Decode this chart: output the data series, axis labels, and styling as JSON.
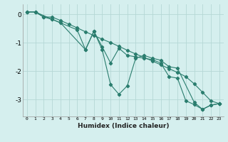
{
  "xlabel": "Humidex (Indice chaleur)",
  "ylabel": "",
  "background_color": "#d5efee",
  "line_color": "#2a7d6e",
  "marker": "D",
  "markersize": 2.2,
  "linewidth": 0.8,
  "grid_color": "#b5d8d5",
  "xlim": [
    -0.5,
    23.5
  ],
  "ylim": [
    -3.6,
    0.35
  ],
  "yticks": [
    0,
    -1,
    -2,
    -3
  ],
  "xticks": [
    0,
    1,
    2,
    3,
    4,
    5,
    6,
    7,
    8,
    9,
    10,
    11,
    12,
    13,
    14,
    15,
    16,
    17,
    18,
    19,
    20,
    21,
    22,
    23
  ],
  "series": [
    {
      "x": [
        0,
        1,
        2,
        3,
        4,
        5,
        6,
        7,
        8,
        9,
        10,
        11,
        12,
        13,
        14,
        15,
        16,
        17,
        18,
        19,
        20,
        21,
        22,
        23
      ],
      "y": [
        0.08,
        0.08,
        -0.1,
        -0.1,
        -0.22,
        -0.35,
        -0.48,
        -0.62,
        -0.75,
        -0.88,
        -1.0,
        -1.13,
        -1.27,
        -1.4,
        -1.52,
        -1.65,
        -1.78,
        -1.92,
        -2.05,
        -2.2,
        -2.45,
        -2.75,
        -3.05,
        -3.15
      ]
    },
    {
      "x": [
        0,
        1,
        2,
        3,
        6,
        7,
        8,
        9,
        10,
        11,
        12,
        13,
        14,
        15,
        16,
        17,
        18,
        19,
        20,
        21,
        22,
        23
      ],
      "y": [
        0.08,
        0.08,
        -0.1,
        -0.18,
        -0.55,
        -1.25,
        -0.6,
        -1.15,
        -1.72,
        -1.2,
        -1.45,
        -1.5,
        -1.55,
        -1.6,
        -1.72,
        -2.2,
        -2.25,
        -3.05,
        -3.18,
        -3.35,
        -3.2,
        -3.15
      ]
    },
    {
      "x": [
        0,
        1,
        3,
        4,
        7,
        8,
        9,
        10,
        11,
        12,
        13,
        14,
        15,
        16,
        17,
        18,
        20,
        21,
        22,
        23
      ],
      "y": [
        0.08,
        0.08,
        -0.18,
        -0.3,
        -1.25,
        -0.6,
        -1.25,
        -2.48,
        -2.82,
        -2.52,
        -1.55,
        -1.45,
        -1.55,
        -1.62,
        -1.85,
        -1.9,
        -3.1,
        -3.35,
        -3.2,
        -3.15
      ]
    }
  ]
}
